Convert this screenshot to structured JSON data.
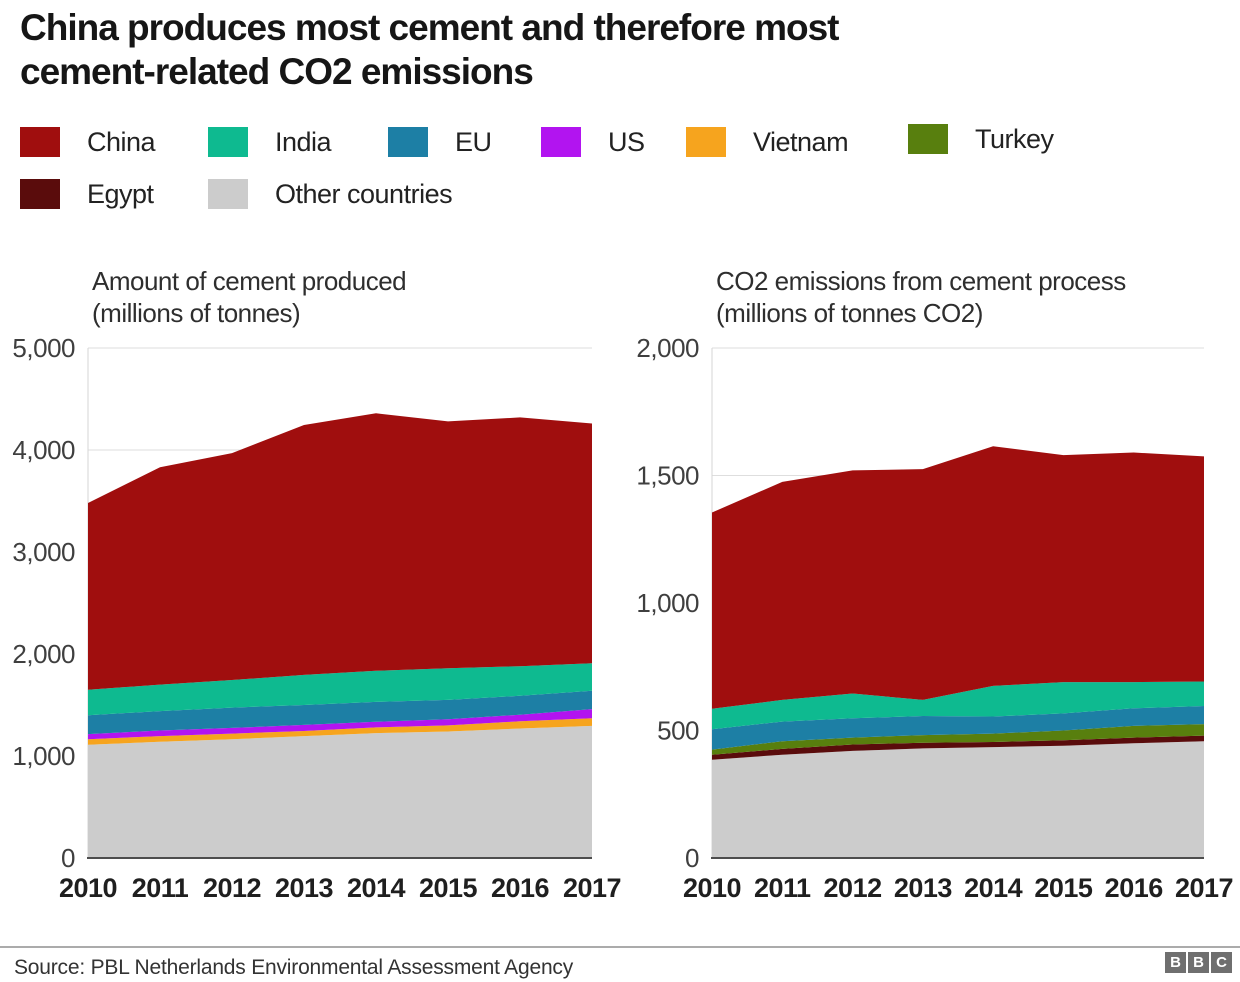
{
  "title": "China produces most cement and therefore most\ncement-related CO2 emissions",
  "legend": {
    "items": [
      {
        "label": "China",
        "color": "#a00e0e"
      },
      {
        "label": "India",
        "color": "#0eba90"
      },
      {
        "label": "EU",
        "color": "#1d7fa5"
      },
      {
        "label": "US",
        "color": "#b214f0"
      },
      {
        "label": "Vietnam",
        "color": "#f6a41e"
      },
      {
        "label": "Turkey",
        "color": "#587f0e"
      },
      {
        "label": "Egypt",
        "color": "#5a0c0c"
      },
      {
        "label": "Other countries",
        "color": "#cccccc"
      }
    ]
  },
  "chart_data": [
    {
      "type": "area",
      "stacked": true,
      "title_line1": "Amount of cement produced",
      "title_line2": "(millions of tonnes)",
      "categories": [
        "2010",
        "2011",
        "2012",
        "2013",
        "2014",
        "2015",
        "2016",
        "2017"
      ],
      "ylim": [
        0,
        5000
      ],
      "yticks": [
        0,
        1000,
        2000,
        3000,
        4000,
        5000
      ],
      "ytick_labels": [
        "0",
        "1,000",
        "2,000",
        "3,000",
        "4,000",
        "5,000"
      ],
      "grid": true,
      "legend_position": "top",
      "series": [
        {
          "name": "China",
          "color": "#a00e0e",
          "values": [
            1830,
            2130,
            2225,
            2450,
            2525,
            2420,
            2440,
            2350
          ]
        },
        {
          "name": "India",
          "color": "#0eba90",
          "values": [
            250,
            260,
            270,
            295,
            305,
            310,
            290,
            270
          ]
        },
        {
          "name": "EU",
          "color": "#1d7fa5",
          "values": [
            185,
            190,
            200,
            195,
            195,
            190,
            185,
            180
          ]
        },
        {
          "name": "US",
          "color": "#b214f0",
          "values": [
            50,
            55,
            55,
            60,
            55,
            60,
            65,
            90
          ]
        },
        {
          "name": "Vietnam",
          "color": "#f6a41e",
          "values": [
            55,
            55,
            55,
            50,
            55,
            60,
            70,
            75
          ]
        },
        {
          "name": "Turkey",
          "color": "#587f0e",
          "values": [
            0,
            0,
            0,
            0,
            0,
            0,
            0,
            0
          ]
        },
        {
          "name": "Egypt",
          "color": "#5a0c0c",
          "values": [
            0,
            0,
            0,
            0,
            0,
            0,
            0,
            0
          ]
        },
        {
          "name": "Other countries",
          "color": "#cccccc",
          "values": [
            1110,
            1140,
            1165,
            1195,
            1225,
            1240,
            1270,
            1295
          ]
        }
      ]
    },
    {
      "type": "area",
      "stacked": true,
      "title_line1": "CO2 emissions from cement process",
      "title_line2": "(millions of tonnes CO2)",
      "categories": [
        "2010",
        "2011",
        "2012",
        "2013",
        "2014",
        "2015",
        "2016",
        "2017"
      ],
      "ylim": [
        0,
        2000
      ],
      "yticks": [
        0,
        500,
        1000,
        1500,
        2000
      ],
      "ytick_labels": [
        "0",
        "500",
        "1,000",
        "1,500",
        "2,000"
      ],
      "grid": true,
      "legend_position": "top",
      "series": [
        {
          "name": "China",
          "color": "#a00e0e",
          "values": [
            770,
            855,
            875,
            905,
            940,
            890,
            900,
            883
          ]
        },
        {
          "name": "India",
          "color": "#0eba90",
          "values": [
            80,
            85,
            97,
            63,
            120,
            123,
            103,
            96
          ]
        },
        {
          "name": "EU",
          "color": "#1d7fa5",
          "values": [
            80,
            77,
            76,
            75,
            67,
            67,
            69,
            71
          ]
        },
        {
          "name": "US",
          "color": "#b214f0",
          "values": [
            0,
            0,
            0,
            0,
            0,
            0,
            0,
            0
          ]
        },
        {
          "name": "Vietnam",
          "color": "#f6a41e",
          "values": [
            0,
            0,
            0,
            0,
            0,
            0,
            0,
            0
          ]
        },
        {
          "name": "Turkey",
          "color": "#587f0e",
          "values": [
            20,
            30,
            27,
            30,
            33,
            38,
            46,
            45
          ]
        },
        {
          "name": "Egypt",
          "color": "#5a0c0c",
          "values": [
            20,
            23,
            25,
            22,
            20,
            22,
            22,
            22
          ]
        },
        {
          "name": "Other countries",
          "color": "#cccccc",
          "values": [
            385,
            405,
            420,
            430,
            435,
            440,
            450,
            458
          ]
        }
      ]
    }
  ],
  "footer": {
    "source": "Source: PBL Netherlands Environmental Assessment Agency",
    "logo_letters": [
      "B",
      "B",
      "C"
    ]
  }
}
